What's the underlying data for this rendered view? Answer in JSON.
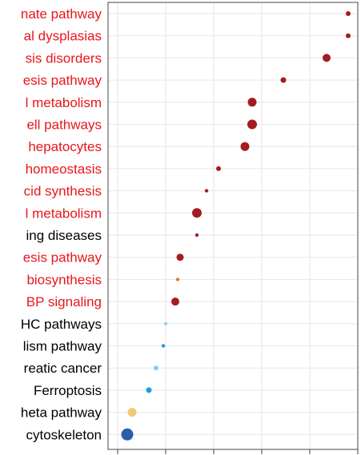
{
  "chart_data": {
    "type": "scatter",
    "title": "",
    "xlabel": "",
    "ylabel": "",
    "xlim": [
      -0.2,
      5.0
    ],
    "x_gridlines": [
      0,
      1,
      2,
      3,
      4,
      5
    ],
    "grid": true,
    "legend": "none",
    "categories": [
      "nate pathway",
      "al dysplasias",
      "sis disorders",
      "esis pathway",
      "l metabolism",
      "ell pathways",
      "hepatocytes",
      "homeostasis",
      "cid synthesis",
      "l metabolism",
      "ing diseases",
      "esis pathway",
      "biosynthesis",
      "BP signaling",
      "HC pathways",
      "lism pathway",
      "reatic cancer",
      "Ferroptosis",
      "heta pathway",
      "cytoskeleton"
    ],
    "label_colors": [
      "#e8161b",
      "#e8161b",
      "#e8161b",
      "#e8161b",
      "#e8161b",
      "#e8161b",
      "#e8161b",
      "#e8161b",
      "#e8161b",
      "#e8161b",
      "#000000",
      "#e8161b",
      "#e8161b",
      "#e8161b",
      "#000000",
      "#000000",
      "#000000",
      "#000000",
      "#000000",
      "#000000"
    ],
    "points": [
      {
        "x": 4.8,
        "size": 3.0,
        "color": "#a51c1e"
      },
      {
        "x": 4.8,
        "size": 3.0,
        "color": "#a51c1e"
      },
      {
        "x": 4.35,
        "size": 5.0,
        "color": "#a51c1e"
      },
      {
        "x": 3.45,
        "size": 3.5,
        "color": "#a51c1e"
      },
      {
        "x": 2.8,
        "size": 5.5,
        "color": "#a51c1e"
      },
      {
        "x": 2.8,
        "size": 6.0,
        "color": "#a51c1e"
      },
      {
        "x": 2.65,
        "size": 5.5,
        "color": "#a51c1e"
      },
      {
        "x": 2.1,
        "size": 3.0,
        "color": "#a51c1e"
      },
      {
        "x": 1.85,
        "size": 2.2,
        "color": "#a51c1e"
      },
      {
        "x": 1.65,
        "size": 6.0,
        "color": "#a51c1e"
      },
      {
        "x": 1.65,
        "size": 2.2,
        "color": "#a51c1e"
      },
      {
        "x": 1.3,
        "size": 4.5,
        "color": "#a51c1e"
      },
      {
        "x": 1.25,
        "size": 2.2,
        "color": "#e4761e"
      },
      {
        "x": 1.2,
        "size": 5.0,
        "color": "#a51c1e"
      },
      {
        "x": 1.0,
        "size": 2.0,
        "color": "#92c8ef"
      },
      {
        "x": 0.95,
        "size": 2.2,
        "color": "#1a9be5"
      },
      {
        "x": 0.8,
        "size": 3.0,
        "color": "#8ec8f0"
      },
      {
        "x": 0.65,
        "size": 3.5,
        "color": "#1a9be5"
      },
      {
        "x": 0.3,
        "size": 5.5,
        "color": "#f0c878"
      },
      {
        "x": 0.2,
        "size": 7.5,
        "color": "#2a5fae"
      }
    ]
  }
}
